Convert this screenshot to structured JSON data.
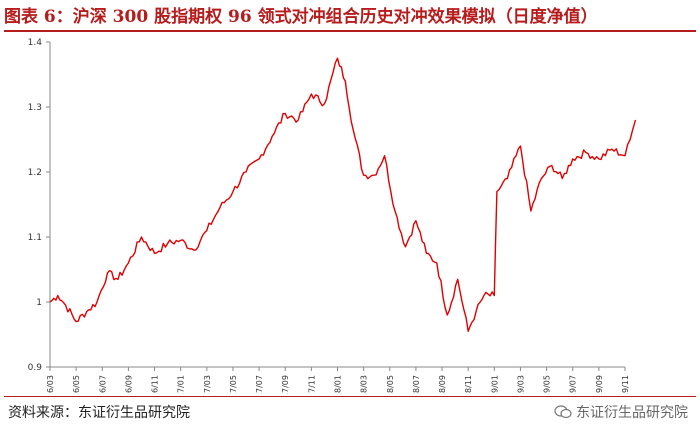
{
  "header": {
    "title": "图表 6：沪深 300 股指期权 96 领式对冲组合历史对冲效果模拟（日度净值）"
  },
  "footer": {
    "source": "资料来源：东证衍生品研究院",
    "watermark": "东证衍生品研究院"
  },
  "icons": {
    "watermark_icon": "wechat-icon"
  },
  "colors": {
    "title": "#b71c1c",
    "line": "#e00000",
    "axis": "#888888"
  },
  "chart_data": {
    "type": "line",
    "title": "",
    "xlabel": "",
    "ylabel": "",
    "ylim": [
      0.9,
      1.4
    ],
    "yticks": [
      "0.9",
      "1",
      "1.1",
      "1.2",
      "1.3",
      "1.4"
    ],
    "xticks": [
      "16/03",
      "16/05",
      "16/07",
      "16/09",
      "16/11",
      "17/01",
      "17/03",
      "17/05",
      "17/07",
      "17/09",
      "17/11",
      "18/01",
      "18/03",
      "18/05",
      "18/07",
      "18/09",
      "18/11",
      "19/01",
      "19/03",
      "19/05",
      "19/07",
      "19/09",
      "19/11"
    ],
    "grid": false,
    "legend": "none",
    "series": [
      {
        "name": "",
        "x_index": [
          0,
          0.3,
          0.6,
          1.0,
          1.4,
          1.8,
          2.2,
          2.6,
          3.0,
          3.5,
          4.0,
          4.5,
          5.0,
          5.5,
          6.0,
          6.5,
          7.0,
          7.5,
          8.0,
          8.5,
          9.0,
          9.5,
          10.0,
          10.5,
          11.0,
          11.3,
          11.6,
          12.0,
          12.4,
          12.8,
          13.2,
          13.6,
          14.0,
          14.4,
          14.8,
          15.2,
          15.6,
          16.0,
          16.3,
          16.6,
          17.0,
          17.1,
          17.5,
          18.0,
          18.4,
          18.8,
          19.2,
          19.6,
          20.0,
          20.5,
          21.0,
          21.5,
          22.0,
          22.2,
          22.4
        ],
        "values": [
          1.0,
          1.01,
          0.995,
          0.97,
          0.985,
          1.0,
          1.045,
          1.035,
          1.06,
          1.1,
          1.075,
          1.09,
          1.095,
          1.08,
          1.11,
          1.145,
          1.17,
          1.2,
          1.22,
          1.255,
          1.29,
          1.28,
          1.32,
          1.305,
          1.375,
          1.34,
          1.265,
          1.195,
          1.195,
          1.225,
          1.14,
          1.085,
          1.125,
          1.075,
          1.06,
          0.98,
          1.035,
          0.955,
          0.985,
          1.01,
          1.01,
          1.17,
          1.19,
          1.24,
          1.14,
          1.19,
          1.21,
          1.19,
          1.22,
          1.23,
          1.22,
          1.235,
          1.225,
          1.25,
          1.28
        ]
      }
    ]
  }
}
